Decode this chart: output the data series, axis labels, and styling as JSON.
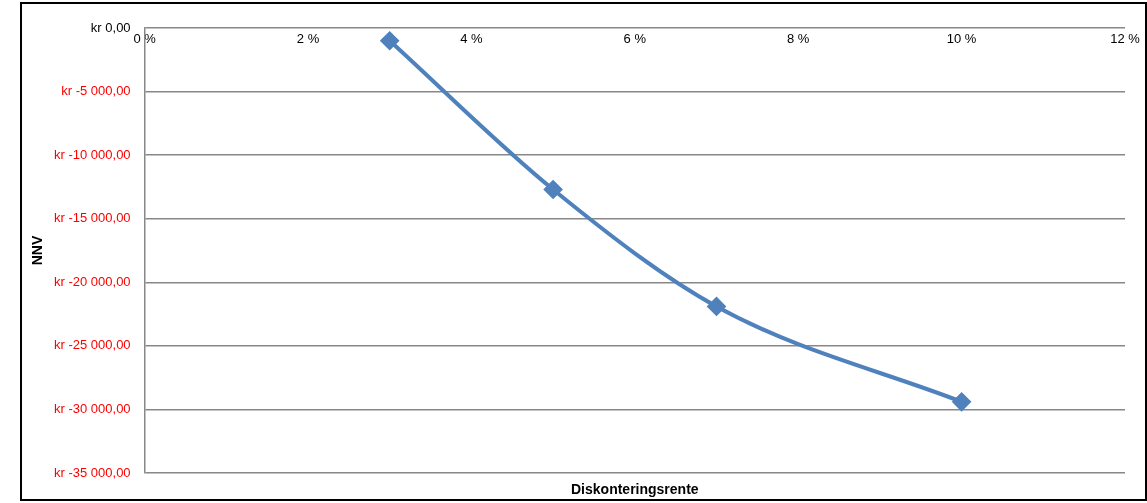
{
  "chart_data": {
    "type": "line",
    "xlabel": "Diskonteringsrente",
    "ylabel": "NNV",
    "x": [
      3,
      5,
      7,
      10
    ],
    "series": [
      {
        "color": "#4f81bd",
        "values": [
          -1000,
          -12700,
          -21900,
          -29400
        ]
      }
    ],
    "xlim": [
      0,
      12
    ],
    "xticks": [
      {
        "value": 0,
        "label": "0 %"
      },
      {
        "value": 2,
        "label": "2 %"
      },
      {
        "value": 4,
        "label": "4 %"
      },
      {
        "value": 6,
        "label": "6 %"
      },
      {
        "value": 8,
        "label": "8 %"
      },
      {
        "value": 10,
        "label": "10 %"
      },
      {
        "value": 12,
        "label": "12 %"
      }
    ],
    "ylim": [
      -35000,
      0
    ],
    "yticks": [
      {
        "value": 0,
        "label": "kr 0,00"
      },
      {
        "value": -5000,
        "label": "kr -5 000,00"
      },
      {
        "value": -10000,
        "label": "kr -10 000,00"
      },
      {
        "value": -15000,
        "label": "kr -15 000,00"
      },
      {
        "value": -20000,
        "label": "kr -20 000,00"
      },
      {
        "value": -25000,
        "label": "kr -25 000,00"
      },
      {
        "value": -30000,
        "label": "kr -30 000,00"
      },
      {
        "value": -35000,
        "label": "kr -35 000,00"
      }
    ],
    "grid": "y",
    "legend": false,
    "marker": "diamond",
    "line_style": "solid"
  }
}
